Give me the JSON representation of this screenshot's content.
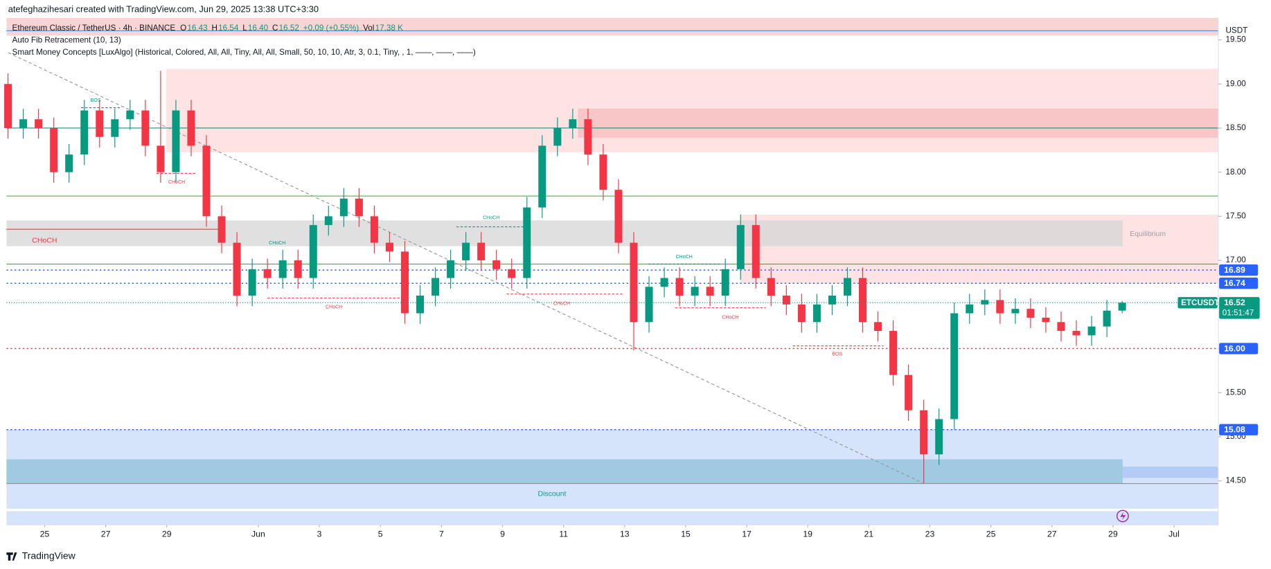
{
  "header": {
    "credit": "atefeghazihesari created with TradingView.com, Jun 29, 2025 13:38 UTC+3:30",
    "symbol": "Ethereum Classic / TetherUS · 4h · BINANCE",
    "ohlc": [
      {
        "key": "O",
        "value": "16.43"
      },
      {
        "key": "H",
        "value": "16.54"
      },
      {
        "key": "L",
        "value": "16.40"
      },
      {
        "key": "C",
        "value": "16.52"
      }
    ],
    "change": "+0.09 (+0.55%)",
    "vol_key": "Vol",
    "vol": "17.38 K",
    "indicators": [
      "Auto Fib Retracement (10, 13)",
      "Smart Money Concepts [LuxAlgo] (Historical, Colored, All, All, Tiny, All, All, Small, 50, 10, 10, Atr, 3, 0.1, Tiny, , 1, ——, ——, ——)"
    ]
  },
  "chart_data": {
    "type": "candlestick",
    "open": [
      19.0,
      18.5,
      18.6,
      18.5,
      18.0,
      18.2,
      18.7,
      18.4,
      18.6,
      18.7,
      18.3,
      18.0,
      18.7,
      18.3,
      17.5,
      17.2,
      16.6,
      16.9,
      16.8,
      17.0,
      16.8,
      17.4,
      17.5,
      17.7,
      17.5,
      17.2,
      17.1,
      16.4,
      16.6,
      16.8,
      17.0,
      17.2,
      17.0,
      16.9,
      16.8,
      17.6,
      18.3,
      18.5,
      18.6,
      18.2,
      17.8,
      17.2,
      16.3,
      16.7,
      16.8,
      16.6,
      16.7,
      16.6,
      16.9,
      17.4,
      16.8,
      16.6,
      16.5,
      16.3,
      16.5,
      16.6,
      16.8,
      16.3,
      16.2,
      15.7,
      15.3,
      14.8,
      15.2,
      16.4,
      16.5,
      16.55,
      16.4,
      16.45,
      16.35,
      16.3,
      16.2,
      16.15,
      16.25,
      16.43
    ],
    "high": [
      19.12,
      18.72,
      18.72,
      18.62,
      18.32,
      18.82,
      18.82,
      18.72,
      18.82,
      18.82,
      19.15,
      18.82,
      18.82,
      18.42,
      17.62,
      17.32,
      17.02,
      17.02,
      17.12,
      17.12,
      17.52,
      17.62,
      17.82,
      17.82,
      17.62,
      17.32,
      17.22,
      16.72,
      16.92,
      17.12,
      17.32,
      17.32,
      17.12,
      17.02,
      17.72,
      18.42,
      18.62,
      18.72,
      18.72,
      18.32,
      17.92,
      17.32,
      16.82,
      16.92,
      16.92,
      16.82,
      16.82,
      17.02,
      17.52,
      17.52,
      16.92,
      16.72,
      16.62,
      16.62,
      16.72,
      16.92,
      16.92,
      16.42,
      16.32,
      15.82,
      15.42,
      15.32,
      16.52,
      16.62,
      16.67,
      16.67,
      16.57,
      16.57,
      16.47,
      16.42,
      16.32,
      16.37,
      16.55,
      16.54
    ],
    "low": [
      18.38,
      18.38,
      18.38,
      17.88,
      17.88,
      18.08,
      18.28,
      18.28,
      18.48,
      18.18,
      17.88,
      17.88,
      18.18,
      17.38,
      17.08,
      16.48,
      16.48,
      16.68,
      16.68,
      16.68,
      16.68,
      17.28,
      17.38,
      17.38,
      17.08,
      16.98,
      16.28,
      16.28,
      16.48,
      16.68,
      16.88,
      16.88,
      16.78,
      16.68,
      16.68,
      17.48,
      18.18,
      18.38,
      18.08,
      17.68,
      17.08,
      15.98,
      16.18,
      16.58,
      16.48,
      16.48,
      16.48,
      16.48,
      16.78,
      16.68,
      16.48,
      16.38,
      16.18,
      16.18,
      16.38,
      16.48,
      16.18,
      16.08,
      15.58,
      15.18,
      14.47,
      14.68,
      15.08,
      16.28,
      16.38,
      16.28,
      16.28,
      16.23,
      16.18,
      16.08,
      16.03,
      16.03,
      16.13,
      16.4
    ],
    "close": [
      18.5,
      18.6,
      18.5,
      18.0,
      18.2,
      18.7,
      18.4,
      18.6,
      18.7,
      18.3,
      18.0,
      18.7,
      18.3,
      17.5,
      17.2,
      16.6,
      16.9,
      16.8,
      17.0,
      16.8,
      17.4,
      17.5,
      17.7,
      17.5,
      17.2,
      17.1,
      16.4,
      16.6,
      16.8,
      17.0,
      17.2,
      17.0,
      16.9,
      16.8,
      17.6,
      18.3,
      18.5,
      18.6,
      18.2,
      17.8,
      17.2,
      16.3,
      16.7,
      16.8,
      16.6,
      16.7,
      16.6,
      16.9,
      17.4,
      16.8,
      16.6,
      16.5,
      16.3,
      16.5,
      16.6,
      16.8,
      16.3,
      16.2,
      15.7,
      15.3,
      14.8,
      15.2,
      16.4,
      16.5,
      16.55,
      16.4,
      16.45,
      16.35,
      16.3,
      16.2,
      16.15,
      16.25,
      16.43,
      16.52
    ],
    "up_color": "#089981",
    "down_color": "#f23645",
    "xlim": [
      -0.1,
      79.3
    ],
    "xticks": [
      {
        "value": 2.4,
        "label": "25"
      },
      {
        "value": 6.4,
        "label": "27"
      },
      {
        "value": 10.4,
        "label": "29"
      },
      {
        "value": 16.4,
        "label": "Jun"
      },
      {
        "value": 20.4,
        "label": "3"
      },
      {
        "value": 24.4,
        "label": "5"
      },
      {
        "value": 28.4,
        "label": "7"
      },
      {
        "value": 32.4,
        "label": "9"
      },
      {
        "value": 36.4,
        "label": "11"
      },
      {
        "value": 40.4,
        "label": "13"
      },
      {
        "value": 44.4,
        "label": "15"
      },
      {
        "value": 48.4,
        "label": "17"
      },
      {
        "value": 52.4,
        "label": "19"
      },
      {
        "value": 56.4,
        "label": "21"
      },
      {
        "value": 60.4,
        "label": "23"
      },
      {
        "value": 64.4,
        "label": "25"
      },
      {
        "value": 68.4,
        "label": "27"
      },
      {
        "value": 72.4,
        "label": "29"
      },
      {
        "value": 76.4,
        "label": "Jul"
      }
    ],
    "ylim": [
      14.0,
      19.75
    ],
    "yticks": [
      {
        "value": 14.5,
        "label": "14.50"
      },
      {
        "value": 15.0,
        "label": "15.00"
      },
      {
        "value": 15.5,
        "label": "15.50"
      },
      {
        "value": 16.0,
        "label": "16.00"
      },
      {
        "value": 16.5,
        "label": "16.50"
      },
      {
        "value": 17.0,
        "label": "17.00"
      },
      {
        "value": 17.5,
        "label": "17.50"
      },
      {
        "value": 18.0,
        "label": "18.00"
      },
      {
        "value": 18.5,
        "label": "18.50"
      },
      {
        "value": 19.0,
        "label": "19.00"
      },
      {
        "value": 19.5,
        "label": "19.50"
      }
    ],
    "currency": "USDT",
    "price_lines": [
      {
        "value": 16.89,
        "label": "16.89",
        "color": "#2962ff"
      },
      {
        "value": 16.74,
        "label": "16.74",
        "color": "#2962ff"
      },
      {
        "value": 16.0,
        "label": "16.00",
        "color": "#2962ff"
      },
      {
        "value": 15.08,
        "label": "15.08",
        "color": "#2962ff"
      }
    ],
    "last": {
      "value": 16.52,
      "label": "16.52",
      "symbol": "ETCUSDT",
      "countdown": "01:51:47",
      "color": "#089981"
    },
    "annotations": [
      {
        "text": "BOS",
        "color": "#089981"
      },
      {
        "text": "CHoCH",
        "color": "#f23645"
      },
      {
        "text": "CHoCH",
        "color": "#f23645"
      },
      {
        "text": "CHoCH",
        "color": "#089981"
      },
      {
        "text": "CHoCH",
        "color": "#089981"
      },
      {
        "text": "CHoCH",
        "color": "#f23645"
      },
      {
        "text": "CHoCH",
        "color": "#f23645"
      },
      {
        "text": "CHoCH",
        "color": "#089981"
      },
      {
        "text": "CHoCH",
        "color": "#f23645"
      },
      {
        "text": "BOS",
        "color": "#f23645"
      },
      {
        "text": "Equilibrium",
        "color": "#9e9e9e"
      },
      {
        "text": "Discount",
        "color": "#089981"
      }
    ]
  },
  "footer": {
    "brand": "TradingView"
  }
}
